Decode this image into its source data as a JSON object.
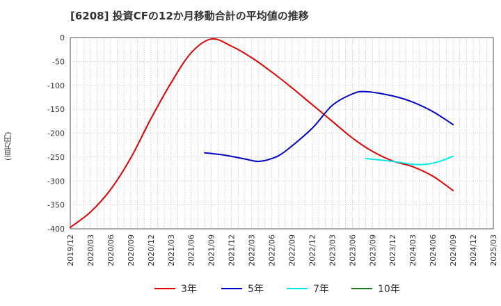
{
  "title": "[6208]  投資CFの12か月移動合計の平均値の推移",
  "chart_data": {
    "type": "line",
    "ylabel": "(百万円)",
    "xlabel": "",
    "x_ticks": [
      "2019/12",
      "2020/03",
      "2020/06",
      "2020/09",
      "2020/12",
      "2021/03",
      "2021/06",
      "2021/09",
      "2021/12",
      "2022/03",
      "2022/06",
      "2022/09",
      "2022/12",
      "2023/03",
      "2023/06",
      "2023/09",
      "2023/12",
      "2024/03",
      "2024/06",
      "2024/09",
      "2024/12",
      "2025/03"
    ],
    "y_ticks": [
      0,
      -50,
      -100,
      -150,
      -200,
      -250,
      -300,
      -350,
      -400
    ],
    "ylim": [
      -400,
      0
    ],
    "xlim": [
      "2019/12",
      "2025/03"
    ],
    "grid": true,
    "legend_position": "bottom",
    "series": [
      {
        "name": "3年",
        "color": "#e00000",
        "points": [
          [
            "2019/12",
            -397
          ],
          [
            "2020/03",
            -365
          ],
          [
            "2020/06",
            -318
          ],
          [
            "2020/09",
            -252
          ],
          [
            "2020/12",
            -170
          ],
          [
            "2021/03",
            -95
          ],
          [
            "2021/06",
            -32
          ],
          [
            "2021/09",
            -3
          ],
          [
            "2021/12",
            -18
          ],
          [
            "2022/03",
            -42
          ],
          [
            "2022/06",
            -72
          ],
          [
            "2022/09",
            -105
          ],
          [
            "2022/12",
            -140
          ],
          [
            "2023/03",
            -175
          ],
          [
            "2023/06",
            -210
          ],
          [
            "2023/09",
            -238
          ],
          [
            "2023/12",
            -258
          ],
          [
            "2024/03",
            -270
          ],
          [
            "2024/06",
            -290
          ],
          [
            "2024/09",
            -320
          ]
        ]
      },
      {
        "name": "5年",
        "color": "#0000c8",
        "points": [
          [
            "2021/08",
            -241
          ],
          [
            "2021/11",
            -246
          ],
          [
            "2022/02",
            -254
          ],
          [
            "2022/04",
            -259
          ],
          [
            "2022/06",
            -253
          ],
          [
            "2022/08",
            -238
          ],
          [
            "2022/12",
            -190
          ],
          [
            "2023/03",
            -142
          ],
          [
            "2023/06",
            -118
          ],
          [
            "2023/08",
            -113
          ],
          [
            "2023/12",
            -122
          ],
          [
            "2024/03",
            -135
          ],
          [
            "2024/06",
            -155
          ],
          [
            "2024/09",
            -182
          ]
        ]
      },
      {
        "name": "7年",
        "color": "#00e8f0",
        "points": [
          [
            "2023/08",
            -253
          ],
          [
            "2023/12",
            -259
          ],
          [
            "2024/03",
            -265
          ],
          [
            "2024/05",
            -265
          ],
          [
            "2024/07",
            -259
          ],
          [
            "2024/09",
            -248
          ]
        ]
      },
      {
        "name": "10年",
        "color": "#1a7a1a",
        "points": []
      }
    ]
  }
}
